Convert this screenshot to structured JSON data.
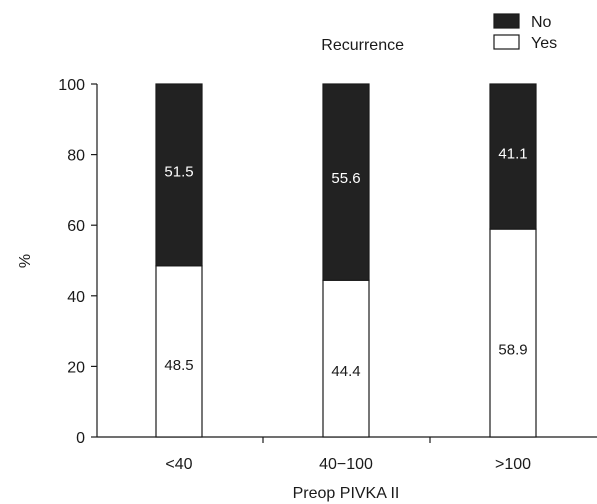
{
  "chart_data": {
    "type": "bar",
    "stacked": true,
    "xlabel": "Preop PIVKA II",
    "ylabel": "%",
    "ylim": [
      0,
      100
    ],
    "yticks": [
      0,
      20,
      40,
      60,
      80,
      100
    ],
    "categories": [
      "<40",
      "40−100",
      ">100"
    ],
    "legend_title": "Recurrence",
    "legend_placement": "top-right",
    "series": [
      {
        "name": "Yes",
        "values": [
          48.5,
          44.4,
          58.9
        ],
        "color": "#ffffff",
        "label_color": "#1a1a1a"
      },
      {
        "name": "No",
        "values": [
          51.5,
          55.6,
          41.1
        ],
        "color": "#222222",
        "label_color": "#ffffff"
      }
    ],
    "legend_order": [
      "No",
      "Yes"
    ],
    "grid": false
  }
}
